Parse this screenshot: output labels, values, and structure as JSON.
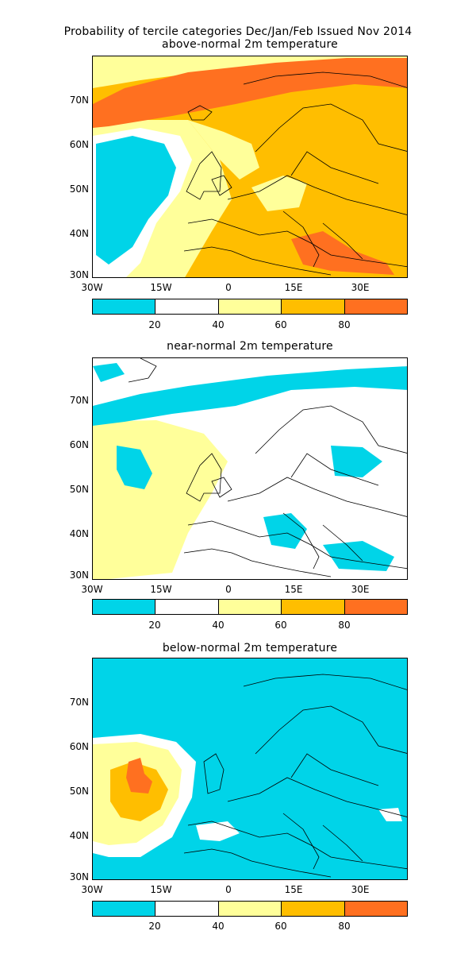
{
  "header": {
    "line1": "Probability of tercile categories Dec/Jan/Feb Issued Nov 2014",
    "line2": "above-normal 2m temperature"
  },
  "colors": {
    "c0_20": "#00d4e8",
    "c20_40": "#ffffff",
    "c40_60": "#ffff9a",
    "c60_80": "#ffbe00",
    "c80_100": "#ff7020",
    "coast": "#000000"
  },
  "axes": {
    "lat_labels": [
      "70N",
      "60N",
      "50N",
      "40N",
      "30N"
    ],
    "lon_labels": [
      "30W",
      "15W",
      "0",
      "15E",
      "30E"
    ],
    "colorbar_labels": [
      "20",
      "40",
      "60",
      "80"
    ]
  },
  "panels": [
    {
      "title": "above-normal 2m temperature",
      "dominant_category": "40-60"
    },
    {
      "title": "near-normal 2m temperature",
      "dominant_category": "20-40"
    },
    {
      "title": "below-normal 2m temperature",
      "dominant_category": "0-20"
    }
  ]
}
